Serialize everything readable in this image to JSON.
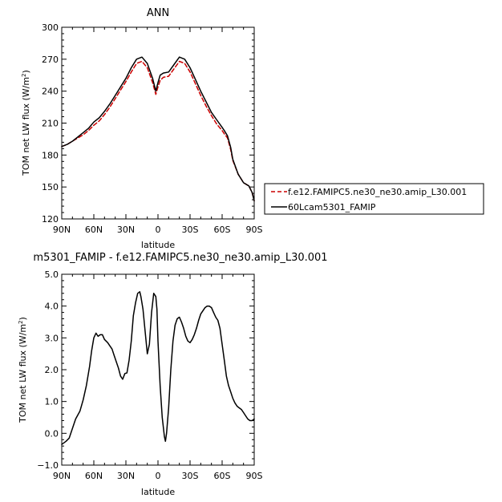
{
  "chart_data": [
    {
      "type": "line",
      "title": "ANN",
      "xlabel": "latitude",
      "ylabel": "TOM net LW flux (W/m²)",
      "ylabel_main": "TOM net LW flux (W/m",
      "ylabel_sup": "2",
      "ylabel_close": ")",
      "xlim": [
        -90,
        90
      ],
      "ylim": [
        120,
        300
      ],
      "x_ticks": [
        -90,
        -60,
        -30,
        0,
        30,
        60,
        90
      ],
      "x_tick_labels": [
        "90N",
        "60N",
        "30N",
        "0",
        "30S",
        "60S",
        "90S"
      ],
      "y_ticks": [
        120,
        150,
        180,
        210,
        240,
        270,
        300
      ],
      "y_tick_labels": [
        "120",
        "150",
        "180",
        "210",
        "240",
        "270",
        "300"
      ],
      "grid": false,
      "legend_position": "right",
      "series": [
        {
          "name": "f.e12.FAMIPC5.ne30_ne30.amip_L30.001",
          "color": "#cc0000",
          "dash": "dashed",
          "x": [
            -90,
            -85,
            -80,
            -75,
            -70,
            -65,
            -60,
            -55,
            -50,
            -45,
            -40,
            -35,
            -30,
            -25,
            -20,
            -15,
            -10,
            -5,
            -2,
            0,
            2,
            5,
            10,
            15,
            20,
            25,
            30,
            35,
            40,
            45,
            50,
            55,
            60,
            62,
            65,
            68,
            70,
            75,
            80,
            85,
            88,
            90
          ],
          "values": [
            188,
            190,
            193,
            196,
            199,
            203,
            208,
            212,
            218,
            225,
            233,
            241,
            249,
            258,
            266,
            268,
            262,
            248,
            237,
            244,
            250,
            253,
            254,
            261,
            268,
            266,
            258,
            247,
            236,
            226,
            217,
            209,
            203,
            200,
            196,
            185,
            175,
            162,
            154,
            151,
            145,
            137
          ]
        },
        {
          "name": "60Lcam5301_FAMIP",
          "color": "#000000",
          "dash": "solid",
          "x": [
            -90,
            -85,
            -80,
            -75,
            -70,
            -65,
            -60,
            -55,
            -50,
            -45,
            -40,
            -35,
            -30,
            -25,
            -20,
            -15,
            -10,
            -5,
            -2,
            0,
            2,
            5,
            10,
            15,
            20,
            25,
            30,
            35,
            40,
            45,
            50,
            55,
            60,
            62,
            65,
            68,
            70,
            75,
            80,
            85,
            88,
            90
          ],
          "values": [
            188,
            190,
            193,
            197,
            201,
            205,
            211,
            215,
            221,
            228,
            236,
            244,
            252,
            262,
            270,
            272,
            266,
            252,
            240,
            248,
            255,
            257,
            258,
            265,
            272,
            270,
            262,
            251,
            240,
            230,
            220,
            213,
            206,
            203,
            198,
            187,
            176,
            162,
            154,
            151,
            145,
            137
          ]
        }
      ]
    },
    {
      "type": "line",
      "title": "m5301_FAMIP - f.e12.FAMIPC5.ne30_ne30.amip_L30.001",
      "xlabel": "latitude",
      "ylabel": "TOM net LW flux (W/m²)",
      "ylabel_main": "TOM net LW flux (W/m",
      "ylabel_sup": "2",
      "ylabel_close": ")",
      "xlim": [
        -90,
        90
      ],
      "ylim": [
        -1.0,
        5.0
      ],
      "x_ticks": [
        -90,
        -60,
        -30,
        0,
        30,
        60,
        90
      ],
      "x_tick_labels": [
        "90N",
        "60N",
        "30N",
        "0",
        "30S",
        "60S",
        "90S"
      ],
      "y_ticks": [
        -1,
        0,
        1,
        2,
        3,
        4,
        5
      ],
      "y_tick_labels": [
        "−1.0",
        "0.0",
        "1.0",
        "2.0",
        "3.0",
        "4.0",
        "5.0"
      ],
      "grid": false,
      "series": [
        {
          "color": "#000000",
          "dash": "solid",
          "x": [
            -90,
            -86,
            -83,
            -80,
            -77,
            -73,
            -70,
            -67,
            -64,
            -62,
            -60,
            -58,
            -56,
            -54,
            -52,
            -50,
            -47,
            -45,
            -43,
            -41,
            -39,
            -37,
            -35,
            -33,
            -31,
            -29,
            -27,
            -25,
            -23,
            -21,
            -19,
            -17,
            -16,
            -14,
            -12,
            -10,
            -8,
            -6,
            -4,
            -2,
            -1,
            0,
            2,
            4,
            6,
            7,
            8,
            10,
            12,
            14,
            16,
            18,
            20,
            22,
            24,
            26,
            28,
            30,
            32,
            34,
            36,
            38,
            40,
            42,
            44,
            46,
            48,
            50,
            52,
            54,
            56,
            58,
            60,
            62,
            64,
            66,
            68,
            70,
            72,
            74,
            76,
            78,
            80,
            82,
            84,
            86,
            88,
            90
          ],
          "values": [
            -0.35,
            -0.25,
            -0.15,
            0.15,
            0.45,
            0.7,
            1.05,
            1.5,
            2.1,
            2.6,
            3.0,
            3.15,
            3.05,
            3.1,
            3.1,
            2.95,
            2.85,
            2.75,
            2.65,
            2.45,
            2.25,
            2.05,
            1.8,
            1.7,
            1.88,
            1.9,
            2.3,
            2.9,
            3.7,
            4.1,
            4.4,
            4.45,
            4.3,
            3.9,
            3.2,
            2.5,
            2.8,
            3.8,
            4.4,
            4.3,
            3.9,
            2.9,
            1.5,
            0.5,
            -0.1,
            -0.25,
            0.0,
            0.8,
            2.0,
            2.9,
            3.4,
            3.6,
            3.65,
            3.5,
            3.3,
            3.05,
            2.9,
            2.85,
            2.95,
            3.1,
            3.3,
            3.55,
            3.75,
            3.85,
            3.95,
            4.0,
            4.0,
            3.95,
            3.8,
            3.65,
            3.55,
            3.3,
            2.8,
            2.3,
            1.8,
            1.5,
            1.3,
            1.1,
            0.95,
            0.85,
            0.8,
            0.75,
            0.65,
            0.55,
            0.45,
            0.4,
            0.4,
            0.45
          ]
        }
      ]
    }
  ]
}
